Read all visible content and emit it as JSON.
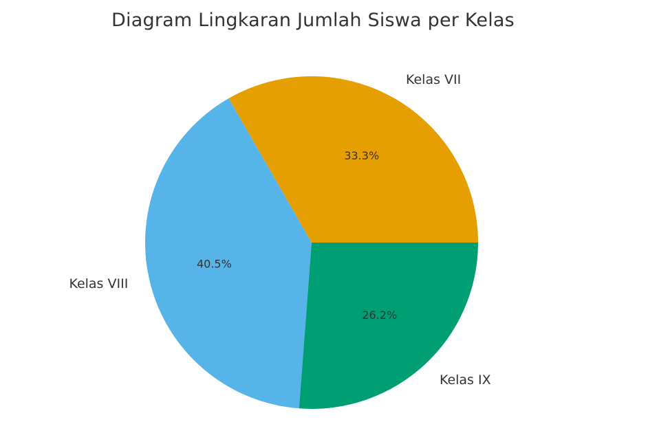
{
  "chart_data": {
    "type": "pie",
    "title": "Diagram Lingkaran Jumlah Siswa per Kelas",
    "slices": [
      {
        "label": "Kelas VII",
        "value": 33.3,
        "pct_label": "33.3%",
        "color": "#E69F00"
      },
      {
        "label": "Kelas VIII",
        "value": 40.5,
        "pct_label": "40.5%",
        "color": "#56B4E9"
      },
      {
        "label": "Kelas IX",
        "value": 26.2,
        "pct_label": "26.2%",
        "color": "#009E73"
      }
    ],
    "start_angle_deg": 0,
    "direction": "counterclockwise"
  }
}
